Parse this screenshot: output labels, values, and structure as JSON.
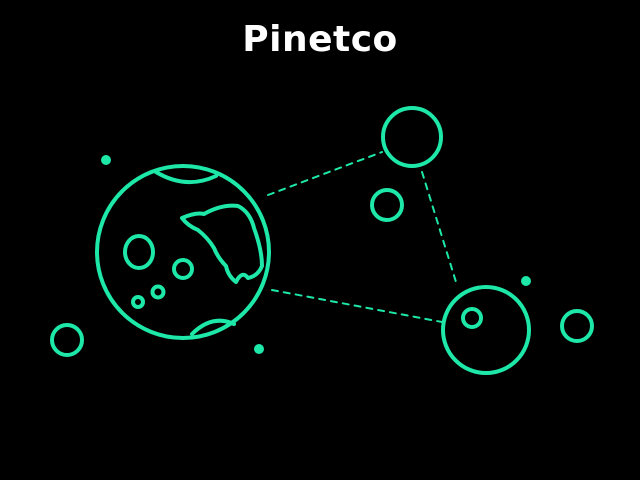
{
  "brand": {
    "name": "Pinetco"
  },
  "colors": {
    "background": "#000000",
    "accent": "#1ee8a8",
    "title": "#ffffff"
  },
  "illustration": {
    "icon": "planet-network-icon"
  }
}
